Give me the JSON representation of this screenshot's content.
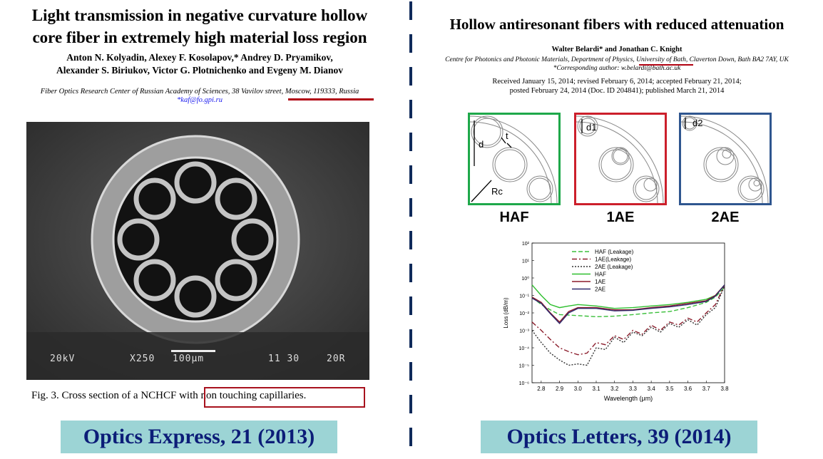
{
  "left": {
    "title_line1": "Light transmission in negative curvature hollow",
    "title_line2": "core fiber in extremely high material loss region",
    "authors_line1": "Anton N. Kolyadin, Alexey F. Kosolapov,* Andrey D. Pryamikov,",
    "authors_line2": "Alexander S. Biriukov, Victor G. Plotnichenko and Evgeny M. Dianov",
    "affiliation": "Fiber Optics Research Center of Russian Academy of Sciences, 38 Vavilov street, Moscow, 119333, Russia",
    "email": "*kaf@fo.gpi.ru",
    "sem": {
      "voltage": "20kV",
      "magnification": "X250",
      "scale": "100μm",
      "code": "11 30",
      "id": "20R"
    },
    "caption_plain": "Fig. 3. Cross section of a NCHCF ",
    "caption_highlight": "with non touching capillaries.",
    "journal": "Optics Express, 21 (2013)"
  },
  "right": {
    "title": "Hollow antiresonant fibers with reduced attenuation",
    "authors": "Walter Belardi* and Jonathan C. Knight",
    "affiliation": "Centre for Photonics and Photonic Materials, Department of Physics, University of Bath, Claverton Down, Bath BA2 7AY, UK",
    "corresponding": "*Corresponding author: w.belardi@bath.ac.uk",
    "dates_line1": "Received January 15, 2014; revised February 6, 2014; accepted February 21, 2014;",
    "dates_line2": "posted February 24, 2014 (Doc. ID 204841); published March 21, 2014",
    "schematics": [
      {
        "label": "HAF",
        "color": "#1ea84a",
        "dims": [
          "d",
          "t",
          "Rc"
        ]
      },
      {
        "label": "1AE",
        "color": "#cc1f2b",
        "dims": [
          "d1"
        ]
      },
      {
        "label": "2AE",
        "color": "#2f568f",
        "dims": [
          "d2"
        ]
      }
    ],
    "journal": "Optics Letters, 39 (2014)"
  },
  "chart_data": {
    "type": "line",
    "xlabel": "Wavelength (μm)",
    "ylabel": "Loss (dB/m)",
    "xlim": [
      2.75,
      3.8
    ],
    "ylim_log10": [
      -6,
      2
    ],
    "yscale": "log",
    "x_ticks": [
      "2.8",
      "2.9",
      "3.0",
      "3.1",
      "3.2",
      "3.3",
      "3.4",
      "3.5",
      "3.6",
      "3.7",
      "3.8"
    ],
    "y_ticks": [
      "10²",
      "10¹",
      "10⁰",
      "10⁻¹",
      "10⁻²",
      "10⁻³",
      "10⁻⁴",
      "10⁻⁵",
      "10⁻⁶"
    ],
    "legend_position": "top-left",
    "series": [
      {
        "name": "HAF (Leakage)",
        "color": "#3bbf3b",
        "dash": "6,3",
        "x": [
          2.75,
          2.8,
          2.85,
          2.9,
          3.0,
          3.1,
          3.2,
          3.3,
          3.4,
          3.5,
          3.6,
          3.7,
          3.75,
          3.8
        ],
        "y": [
          0.08,
          0.03,
          0.015,
          0.008,
          0.007,
          0.006,
          0.0065,
          0.008,
          0.01,
          0.012,
          0.02,
          0.04,
          0.08,
          0.3
        ]
      },
      {
        "name": "1AE(Leakage)",
        "color": "#8b1c2b",
        "dash": "7,3,2,3",
        "x": [
          2.75,
          2.8,
          2.85,
          2.9,
          2.95,
          3.0,
          3.05,
          3.1,
          3.15,
          3.2,
          3.25,
          3.3,
          3.35,
          3.4,
          3.45,
          3.5,
          3.55,
          3.6,
          3.65,
          3.7,
          3.75,
          3.8
        ],
        "y": [
          0.003,
          0.001,
          0.0003,
          0.0001,
          6e-05,
          4e-05,
          5e-05,
          0.0002,
          0.00015,
          0.0005,
          0.0003,
          0.001,
          0.0006,
          0.002,
          0.001,
          0.003,
          0.002,
          0.005,
          0.003,
          0.01,
          0.03,
          0.4
        ]
      },
      {
        "name": "2AE (Leakage)",
        "color": "#333333",
        "dash": "2,2",
        "x": [
          2.75,
          2.8,
          2.85,
          2.9,
          2.95,
          3.0,
          3.05,
          3.1,
          3.15,
          3.2,
          3.25,
          3.3,
          3.35,
          3.4,
          3.45,
          3.5,
          3.55,
          3.6,
          3.65,
          3.7,
          3.75,
          3.8
        ],
        "y": [
          0.001,
          0.0002,
          5e-05,
          2e-05,
          1e-05,
          1.2e-05,
          1e-05,
          0.0001,
          8e-05,
          0.0004,
          0.0002,
          0.0008,
          0.0005,
          0.0015,
          0.0008,
          0.0025,
          0.0015,
          0.004,
          0.002,
          0.008,
          0.02,
          0.35
        ]
      },
      {
        "name": "HAF",
        "color": "#2fbf2f",
        "dash": "",
        "x": [
          2.75,
          2.8,
          2.85,
          2.9,
          2.95,
          3.0,
          3.1,
          3.2,
          3.3,
          3.4,
          3.5,
          3.6,
          3.7,
          3.75,
          3.8
        ],
        "y": [
          0.4,
          0.1,
          0.03,
          0.02,
          0.025,
          0.03,
          0.025,
          0.018,
          0.02,
          0.025,
          0.03,
          0.04,
          0.06,
          0.1,
          0.4
        ]
      },
      {
        "name": "1AE",
        "color": "#8b1c2b",
        "dash": "",
        "x": [
          2.75,
          2.8,
          2.85,
          2.9,
          2.95,
          3.0,
          3.1,
          3.2,
          3.3,
          3.4,
          3.5,
          3.6,
          3.7,
          3.75,
          3.8
        ],
        "y": [
          0.08,
          0.04,
          0.01,
          0.003,
          0.012,
          0.02,
          0.02,
          0.015,
          0.015,
          0.02,
          0.025,
          0.035,
          0.05,
          0.1,
          0.4
        ]
      },
      {
        "name": "2AE",
        "color": "#2e2a6e",
        "dash": "",
        "x": [
          2.75,
          2.8,
          2.85,
          2.9,
          2.95,
          3.0,
          3.1,
          3.2,
          3.3,
          3.4,
          3.5,
          3.6,
          3.7,
          3.75,
          3.8
        ],
        "y": [
          0.07,
          0.035,
          0.009,
          0.0025,
          0.01,
          0.018,
          0.018,
          0.013,
          0.014,
          0.018,
          0.022,
          0.03,
          0.045,
          0.09,
          0.4
        ]
      }
    ]
  }
}
